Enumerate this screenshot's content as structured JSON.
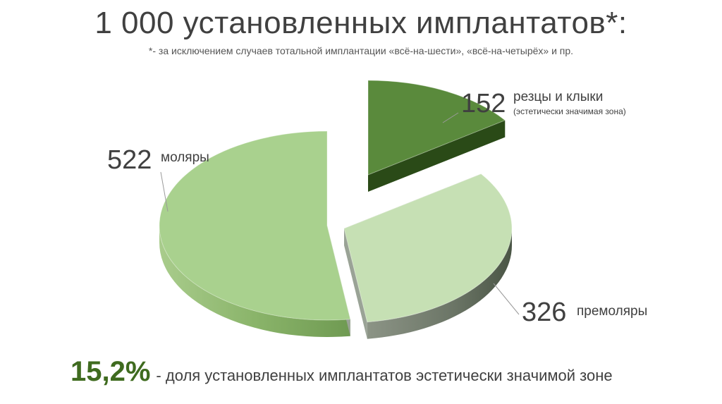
{
  "header": {
    "title": "1 000 установленных имплантатов*:",
    "subtitle": "*- за исключением случаев тотальной имплантации «всё-на-шести», «всё-на-четырёх» и пр."
  },
  "chart_data": {
    "type": "pie",
    "title": "1 000 установленных имплантатов*:",
    "total": 1000,
    "slices": [
      {
        "value": 152,
        "label": "резцы и клыки",
        "sublabel": "(эстетически значимая зона)",
        "color": "#5a8a3c"
      },
      {
        "value": 326,
        "label": "премоляры",
        "sublabel": "",
        "color": "#c6e0b4"
      },
      {
        "value": 522,
        "label": "моляры",
        "sublabel": "",
        "color": "#a9d18e"
      }
    ],
    "exploded": true,
    "style": "3d"
  },
  "labels": {
    "incisors_value": "152",
    "incisors_name": "резцы и клыки",
    "incisors_sub": "(эстетически значимая зона)",
    "premolars_value": "326",
    "premolars_name": "премоляры",
    "molars_value": "522",
    "molars_name": "моляры"
  },
  "footer": {
    "percent": "15,2%",
    "text": "- доля установленных имплантатов эстетически значимой зоне",
    "percent_color": "#3f6b1f"
  }
}
